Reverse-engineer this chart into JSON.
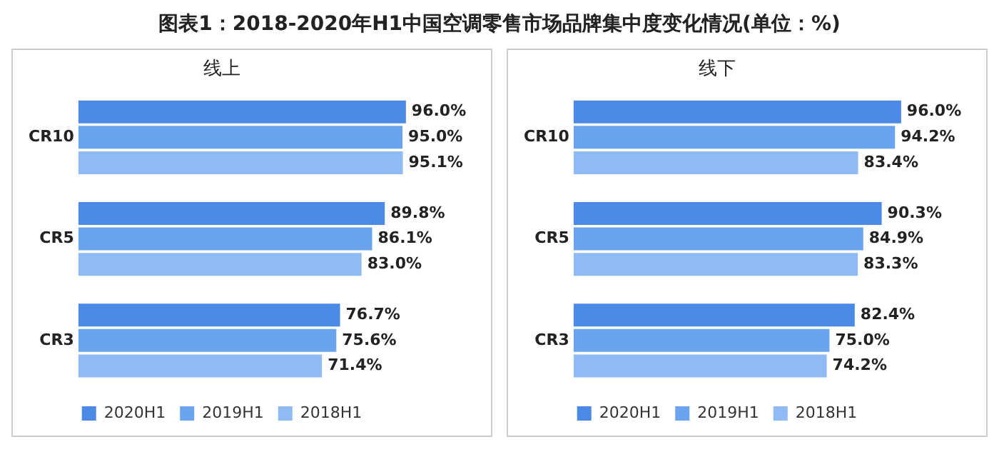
{
  "chart_data": [
    {
      "type": "bar",
      "title": "图表1：2018-2020年H1中国空调零售市场品牌集中度变化情况(单位：%)",
      "subtitle": "线上",
      "orientation": "horizontal",
      "categories": [
        "CR10",
        "CR5",
        "CR3"
      ],
      "tick_labels": "y",
      "grid": false,
      "legend": "bottom",
      "series": [
        {
          "name": "2020H1",
          "color": "#4a8ae6",
          "values": [
            96.0,
            89.8,
            76.7
          ],
          "value_labels": [
            "96.0%",
            "89.8%",
            "76.7%"
          ]
        },
        {
          "name": "2019H1",
          "color": "#6aa3ee",
          "values": [
            95.0,
            86.1,
            75.6
          ],
          "value_labels": [
            "95.0%",
            "86.1%",
            "75.6%"
          ]
        },
        {
          "name": "2018H1",
          "color": "#8fbaf3",
          "values": [
            95.1,
            83.0,
            71.4
          ],
          "value_labels": [
            "95.1%",
            "83.0%",
            "71.4%"
          ]
        }
      ]
    },
    {
      "type": "bar",
      "title": "线下",
      "orientation": "horizontal",
      "categories": [
        "CR10",
        "CR5",
        "CR3"
      ],
      "tick_labels": "y",
      "grid": false,
      "legend": "bottom",
      "series": [
        {
          "name": "2020H1",
          "color": "#4a8ae6",
          "values": [
            96.0,
            90.3,
            82.4
          ],
          "value_labels": [
            "96.0%",
            "90.3%",
            "82.4%"
          ]
        },
        {
          "name": "2019H1",
          "color": "#6aa3ee",
          "values": [
            94.2,
            84.9,
            75.0
          ],
          "value_labels": [
            "94.2%",
            "84.9%",
            "75.0%"
          ]
        },
        {
          "name": "2018H1",
          "color": "#8fbaf3",
          "values": [
            83.4,
            83.3,
            74.2
          ],
          "value_labels": [
            "83.4%",
            "83.3%",
            "74.2%"
          ]
        }
      ]
    }
  ]
}
